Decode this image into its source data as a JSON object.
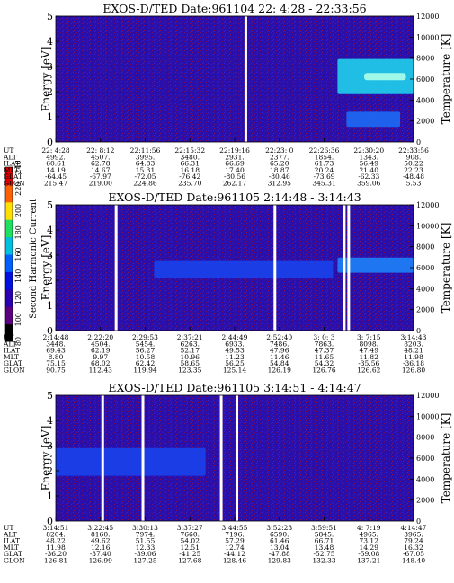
{
  "colorbar": {
    "title": "Second Harmonic Current",
    "ticks": [
      "80",
      "100",
      "120",
      "140",
      "160",
      "180",
      "200",
      "220",
      "240"
    ],
    "colors": [
      "#000000",
      "#5a0080",
      "#2a00b0",
      "#0010e0",
      "#0060ff",
      "#00c0e0",
      "#20e060",
      "#ffe000",
      "#ff6000",
      "#e00000"
    ]
  },
  "common": {
    "ylabel_left": "Energy [eV]",
    "ylabel_right": "Temperature [K]",
    "energy_ticks": [
      "0",
      "1",
      "2",
      "3",
      "4",
      "5"
    ],
    "temp_ticks": [
      "0",
      "2000",
      "4000",
      "6000",
      "8000",
      "10000",
      "12000"
    ],
    "row_labels": [
      "UT",
      "ALT",
      "ILAT",
      "MLT",
      "GLAT",
      "GLON"
    ]
  },
  "panels": [
    {
      "title": "EXOS-D/TED   Date:961104  22: 4:28 - 22:33:56",
      "columns": [
        [
          "22: 4:28",
          "4992.",
          "60.61",
          "14.19",
          "-64.45",
          "215.47"
        ],
        [
          "22: 8:12",
          "4507.",
          "62.78",
          "14.67",
          "-67.97",
          "219.00"
        ],
        [
          "22:11:56",
          "3995.",
          "64.83",
          "15.31",
          "-72.05",
          "224.86"
        ],
        [
          "22:15:32",
          "3480.",
          "66.31",
          "16.18",
          "-76.42",
          "235.70"
        ],
        [
          "22:19:16",
          "2931.",
          "66.69",
          "17.40",
          "-80.56",
          "262.17"
        ],
        [
          "22:23: 0",
          "2377.",
          "65.20",
          "18.87",
          "-80.46",
          "312.95"
        ],
        [
          "22:26:36",
          "1854.",
          "61.73",
          "20.24",
          "-73.69",
          "345.31"
        ],
        [
          "22:30:20",
          "1343.",
          "56.49",
          "21.40",
          "-62.33",
          "359.06"
        ],
        [
          "22:33:56",
          "908.",
          "50.22",
          "22.23",
          "-48.48",
          "5.53"
        ]
      ]
    },
    {
      "title": "EXOS-D/TED   Date:961105   2:14:48 - 3:14:43",
      "columns": [
        [
          "2:14:48",
          "3448.",
          "69.43",
          "8.80",
          "75.15",
          "90.75"
        ],
        [
          "2:22:20",
          "4504.",
          "62.19",
          "9.97",
          "68.02",
          "112.43"
        ],
        [
          "2:29:53",
          "5454.",
          "56.27",
          "10.58",
          "62.42",
          "119.94"
        ],
        [
          "2:37:21",
          "6263.",
          "52.17",
          "10.96",
          "58.65",
          "123.35"
        ],
        [
          "2:44:49",
          "6933.",
          "49.53",
          "11.23",
          "56.25",
          "125.14"
        ],
        [
          "2:52:40",
          "7486.",
          "47.96",
          "11.46",
          "54.84",
          "126.19"
        ],
        [
          "3: 0: 3",
          "7863.",
          "47.37",
          "11.65",
          "54.32",
          "126.76"
        ],
        [
          "3: 7:15",
          "8098.",
          "47.49",
          "11.82",
          "-35.56",
          "126.62"
        ],
        [
          "3:14:43",
          "8203.",
          "48.21",
          "11.98",
          "-36.18",
          "126.80"
        ]
      ]
    },
    {
      "title": "EXOS-D/TED   Date:961105   3:14:51 - 4:14:47",
      "columns": [
        [
          "3:14:51",
          "8204.",
          "48.22",
          "11.98",
          "-36.20",
          "126.81"
        ],
        [
          "3:22:45",
          "8160.",
          "49.62",
          "12.16",
          "-37.40",
          "126.99"
        ],
        [
          "3:30:13",
          "7974.",
          "51.55",
          "12.33",
          "-39.06",
          "127.25"
        ],
        [
          "3:37:27",
          "7660.",
          "54.02",
          "12.51",
          "-41.25",
          "127.68"
        ],
        [
          "3:44:55",
          "7196.",
          "57.29",
          "12.74",
          "-44.12",
          "128.46"
        ],
        [
          "3:52:23",
          "6590.",
          "61.46",
          "13.04",
          "-47.88",
          "129.83"
        ],
        [
          "3:59:51",
          "5845.",
          "66.71",
          "13.48",
          "-52.75",
          "132.33"
        ],
        [
          "4: 7:19",
          "4965.",
          "73.12",
          "14.29",
          "-59.08",
          "137.21"
        ],
        [
          "4:14:47",
          "3965.",
          "79.24",
          "16.32",
          "-67.05",
          "148.40"
        ]
      ]
    }
  ],
  "chart_data": {
    "type": "heatmap",
    "xlabel": "UT",
    "ylabel": "Energy [eV]",
    "y2label": "Temperature [K]",
    "ylim": [
      0,
      5
    ],
    "y2lim": [
      0,
      12000
    ],
    "colorbar_label": "Second Harmonic Current",
    "colorbar_range": [
      80,
      240
    ],
    "panels": [
      {
        "title": "EXOS-D/TED   Date:961104  22: 4:28 - 22:33:56",
        "x_ticks": [
          "22: 4:28",
          "22: 8:12",
          "22:11:56",
          "22:15:32",
          "22:19:16",
          "22:23: 0",
          "22:26:36",
          "22:30:20",
          "22:33:56"
        ],
        "features": [
          {
            "from_tick": 6.3,
            "to_tick": 8.0,
            "e_low": 1.9,
            "e_high": 3.3,
            "level": 170
          },
          {
            "from_tick": 6.5,
            "to_tick": 7.7,
            "e_low": 0.6,
            "e_high": 1.2,
            "level": 140
          }
        ],
        "gaps": [
          4.25
        ]
      },
      {
        "title": "EXOS-D/TED   Date:961105   2:14:48 - 3:14:43",
        "x_ticks": [
          "2:14:48",
          "2:22:20",
          "2:29:53",
          "2:37:21",
          "2:44:49",
          "2:52:40",
          "3: 0: 3",
          "3: 7:15",
          "3:14:43"
        ],
        "features": [
          {
            "from_tick": 2.2,
            "to_tick": 6.2,
            "e_low": 2.1,
            "e_high": 2.8,
            "level": 130
          },
          {
            "from_tick": 6.3,
            "to_tick": 8.0,
            "e_low": 2.3,
            "e_high": 2.9,
            "level": 150
          }
        ],
        "gaps": [
          1.35,
          4.9,
          6.45,
          6.55
        ]
      },
      {
        "title": "EXOS-D/TED   Date:961105   3:14:51 - 4:14:47",
        "x_ticks": [
          "3:14:51",
          "3:22:45",
          "3:30:13",
          "3:37:27",
          "3:44:55",
          "3:52:23",
          "3:59:51",
          "4: 7:19",
          "4:14:47"
        ],
        "features": [
          {
            "from_tick": 0.0,
            "to_tick": 3.35,
            "e_low": 1.8,
            "e_high": 2.9,
            "level": 130
          }
        ],
        "gaps": [
          1.05,
          1.95,
          3.7,
          4.05
        ]
      }
    ]
  }
}
